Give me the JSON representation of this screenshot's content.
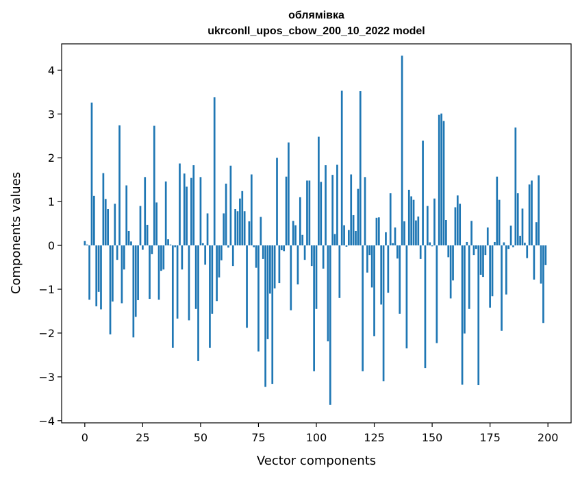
{
  "chart_data": {
    "type": "bar",
    "title": "облямівка",
    "subtitle": "ukrconll_upos_cbow_200_10_2022 model",
    "xlabel": "Vector components",
    "ylabel": "Components values",
    "xlim": [
      -10,
      210
    ],
    "ylim": [
      -4.05,
      4.6
    ],
    "xticks": [
      0,
      25,
      50,
      75,
      100,
      125,
      150,
      175,
      200
    ],
    "yticks": [
      -4,
      -3,
      -2,
      -1,
      0,
      1,
      2,
      3,
      4
    ],
    "xtick_labels": [
      "0",
      "25",
      "50",
      "75",
      "100",
      "125",
      "150",
      "175",
      "200"
    ],
    "ytick_labels": [
      "−4",
      "−3",
      "−2",
      "−1",
      "0",
      "1",
      "2",
      "3",
      "4"
    ],
    "grid": false,
    "bar_color": "#1f77b4",
    "values": [
      0.1,
      0.02,
      -1.24,
      3.26,
      1.13,
      -1.39,
      -1.06,
      -1.46,
      1.65,
      1.06,
      0.83,
      -2.03,
      -1.28,
      0.95,
      -0.33,
      2.74,
      -1.32,
      -0.55,
      1.37,
      0.33,
      0.09,
      -2.1,
      -1.63,
      -1.25,
      0.9,
      -0.1,
      1.56,
      0.47,
      -1.22,
      -0.2,
      2.73,
      0.98,
      -1.24,
      -0.58,
      -0.55,
      1.46,
      0.14,
      0.02,
      -2.34,
      -0.04,
      -1.67,
      1.87,
      -0.55,
      1.64,
      1.34,
      -1.71,
      1.54,
      1.83,
      -1.45,
      -2.64,
      1.56,
      0.05,
      -0.44,
      0.73,
      -2.34,
      -1.56,
      3.38,
      -1.27,
      -0.73,
      -0.34,
      0.73,
      1.41,
      -0.05,
      1.82,
      -0.47,
      0.83,
      0.78,
      1.07,
      1.24,
      0.78,
      -1.88,
      0.55,
      1.62,
      -0.04,
      -0.51,
      -2.42,
      0.65,
      -0.31,
      -3.23,
      -2.14,
      -1.1,
      -3.16,
      -0.98,
      2.0,
      -0.86,
      -0.11,
      -0.13,
      1.57,
      2.35,
      -1.48,
      0.56,
      0.46,
      -0.89,
      1.1,
      0.24,
      -0.33,
      1.48,
      1.48,
      -0.47,
      -2.87,
      -1.45,
      2.48,
      1.45,
      -0.53,
      1.83,
      -2.19,
      -3.64,
      1.61,
      0.26,
      1.84,
      -1.2,
      3.53,
      0.46,
      -0.03,
      0.35,
      1.62,
      0.69,
      0.33,
      1.29,
      3.52,
      -2.87,
      1.56,
      -0.62,
      -0.22,
      -0.96,
      -2.07,
      0.63,
      0.64,
      -1.35,
      -3.1,
      0.3,
      -1.08,
      1.19,
      0.05,
      0.41,
      -0.3,
      -1.56,
      4.33,
      0.55,
      -2.35,
      1.27,
      1.12,
      1.04,
      0.57,
      0.66,
      -0.31,
      2.39,
      -2.8,
      0.9,
      0.07,
      -0.02,
      1.07,
      -2.23,
      2.98,
      3.01,
      2.84,
      0.58,
      -0.27,
      -1.21,
      -0.8,
      0.87,
      1.14,
      0.95,
      -3.18,
      -2.01,
      0.08,
      -1.45,
      0.56,
      -0.22,
      -0.08,
      -3.19,
      -0.67,
      -0.72,
      -0.22,
      0.41,
      -1.42,
      -1.16,
      0.08,
      1.57,
      1.04,
      -1.95,
      0.07,
      -1.12,
      -0.08,
      0.45,
      -0.04,
      2.69,
      1.19,
      0.22,
      0.84,
      0.06,
      -0.29,
      1.39,
      1.48,
      -0.78,
      0.53,
      1.6,
      -0.87,
      -1.77,
      -0.45
    ]
  }
}
